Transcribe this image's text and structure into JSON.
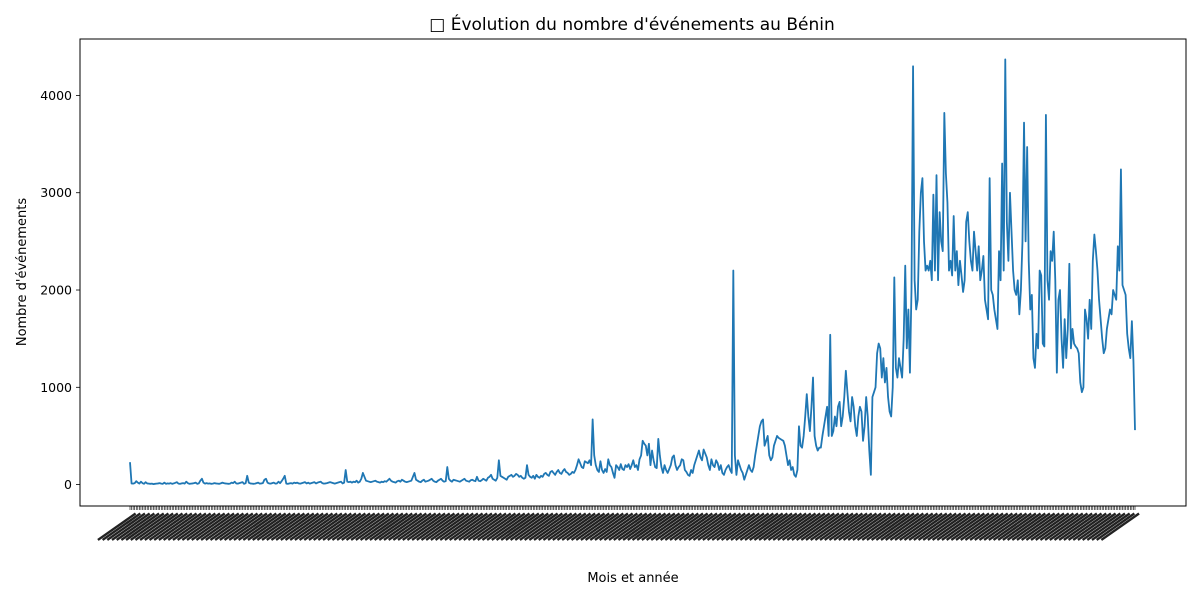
{
  "chart_data": {
    "type": "line",
    "title": "□ Évolution du nombre d'événements au Bénin",
    "xlabel": "Mois et année",
    "ylabel": "Nombre d'événements",
    "ylim": [
      -220,
      4580
    ],
    "yticks": [
      0,
      1000,
      2000,
      3000,
      4000
    ],
    "grid": false,
    "legend": "none",
    "x_tick_labels_note": "",
    "series": [
      {
        "color": "#1f77b4",
        "values": [
          230,
          12,
          10,
          15,
          35,
          20,
          10,
          30,
          15,
          8,
          25,
          12,
          10,
          8,
          10,
          5,
          8,
          10,
          12,
          15,
          10,
          8,
          20,
          8,
          12,
          10,
          15,
          8,
          12,
          18,
          25,
          10,
          8,
          12,
          15,
          10,
          30,
          15,
          8,
          10,
          12,
          15,
          20,
          8,
          12,
          40,
          60,
          20,
          10,
          15,
          10,
          12,
          8,
          10,
          15,
          12,
          10,
          8,
          12,
          20,
          15,
          12,
          10,
          8,
          10,
          20,
          15,
          30,
          12,
          10,
          15,
          20,
          25,
          8,
          15,
          90,
          20,
          12,
          10,
          8,
          10,
          15,
          20,
          10,
          12,
          15,
          50,
          60,
          20,
          12,
          10,
          15,
          20,
          10,
          12,
          30,
          15,
          35,
          60,
          90,
          10,
          8,
          12,
          15,
          10,
          20,
          15,
          20,
          12,
          10,
          15,
          20,
          25,
          12,
          20,
          10,
          15,
          20,
          25,
          12,
          20,
          25,
          30,
          15,
          10,
          12,
          15,
          20,
          25,
          20,
          15,
          10,
          15,
          20,
          25,
          30,
          12,
          20,
          150,
          30,
          25,
          30,
          20,
          30,
          25,
          40,
          20,
          30,
          60,
          120,
          80,
          40,
          35,
          30,
          25,
          30,
          35,
          40,
          30,
          25,
          20,
          30,
          25,
          35,
          30,
          45,
          60,
          40,
          30,
          25,
          20,
          35,
          40,
          30,
          50,
          40,
          30,
          25,
          30,
          35,
          40,
          80,
          120,
          50,
          40,
          30,
          25,
          40,
          50,
          30,
          35,
          40,
          50,
          60,
          40,
          30,
          25,
          40,
          50,
          60,
          40,
          30,
          35,
          180,
          60,
          40,
          30,
          50,
          45,
          40,
          35,
          30,
          40,
          50,
          60,
          40,
          35,
          30,
          45,
          50,
          40,
          35,
          80,
          40,
          35,
          45,
          60,
          50,
          40,
          70,
          80,
          100,
          60,
          50,
          40,
          70,
          250,
          90,
          80,
          70,
          60,
          50,
          80,
          90,
          100,
          80,
          90,
          110,
          100,
          80,
          90,
          70,
          60,
          70,
          200,
          100,
          80,
          70,
          90,
          60,
          100,
          80,
          70,
          90,
          80,
          110,
          120,
          100,
          90,
          130,
          140,
          120,
          100,
          130,
          150,
          120,
          110,
          140,
          160,
          130,
          120,
          100,
          110,
          130,
          120,
          150,
          200,
          260,
          220,
          180,
          170,
          240,
          230,
          220,
          250,
          200,
          670,
          300,
          200,
          150,
          130,
          240,
          150,
          120,
          160,
          130,
          260,
          200,
          180,
          120,
          70,
          200,
          180,
          150,
          210,
          160,
          150,
          200,
          180,
          210,
          160,
          200,
          250,
          180,
          200,
          150,
          260,
          300,
          450,
          420,
          400,
          300,
          420,
          200,
          350,
          250,
          180,
          170,
          470,
          300,
          180,
          120,
          200,
          150,
          120,
          160,
          200,
          280,
          300,
          200,
          150,
          180,
          200,
          260,
          250,
          150,
          130,
          100,
          90,
          150,
          120,
          200,
          250,
          300,
          350,
          280,
          250,
          360,
          320,
          280,
          200,
          150,
          260,
          200,
          180,
          250,
          220,
          150,
          200,
          120,
          100,
          150,
          180,
          200,
          150,
          120,
          2200,
          300,
          100,
          250,
          200,
          150,
          120,
          50,
          100,
          150,
          200,
          150,
          130,
          180,
          300,
          400,
          500,
          600,
          650,
          670,
          400,
          450,
          500,
          300,
          250,
          280,
          400,
          450,
          500,
          480,
          470,
          460,
          450,
          400,
          300,
          200,
          250,
          150,
          180,
          100,
          80,
          150,
          600,
          400,
          380,
          500,
          700,
          930,
          700,
          550,
          800,
          1100,
          500,
          400,
          350,
          380,
          380,
          500,
          600,
          700,
          800,
          500,
          1540,
          500,
          550,
          700,
          600,
          800,
          850,
          600,
          700,
          900,
          1170,
          950,
          750,
          650,
          900,
          800,
          600,
          500,
          700,
          800,
          750,
          450,
          600,
          900,
          700,
          350,
          100,
          900,
          950,
          1000,
          1350,
          1450,
          1400,
          1100,
          1300,
          1050,
          1200,
          900,
          750,
          700,
          1000,
          2130,
          1200,
          1100,
          1300,
          1200,
          1100,
          1500,
          2250,
          1400,
          1800,
          1150,
          2000,
          4300,
          2100,
          1800,
          1900,
          2600,
          3000,
          3150,
          2500,
          2200,
          2250,
          2200,
          2300,
          2100,
          2980,
          2200,
          3180,
          2100,
          2800,
          2500,
          2400,
          3820,
          3200,
          2900,
          2200,
          2300,
          2150,
          2760,
          2200,
          2400,
          2050,
          2300,
          2150,
          1980,
          2100,
          2700,
          2800,
          2500,
          2300,
          2200,
          2600,
          2400,
          2200,
          2450,
          2100,
          2200,
          2350,
          1900,
          1800,
          1700,
          3150,
          2000,
          1950,
          1800,
          1700,
          1600,
          2400,
          2100,
          3300,
          2200,
          4370,
          2700,
          2300,
          3000,
          2600,
          2200,
          2000,
          1950,
          2100,
          1750,
          2000,
          2500,
          3720,
          2500,
          3470,
          2300,
          1800,
          1950,
          1300,
          1200,
          1550,
          1400,
          2200,
          2150,
          1450,
          1420,
          3800,
          2100,
          1900,
          2400,
          2300,
          2600,
          2100,
          1150,
          1900,
          2000,
          1500,
          1200,
          1700,
          1300,
          1600,
          2270,
          1400,
          1600,
          1450,
          1420,
          1400,
          1350,
          1050,
          950,
          1000,
          1800,
          1700,
          1500,
          1900,
          1600,
          2300,
          2570,
          2400,
          2200,
          1900,
          1700,
          1500,
          1350,
          1400,
          1600,
          1700,
          1800,
          1750,
          2000,
          1950,
          1900,
          2450,
          2200,
          3240,
          2050,
          2000,
          1950,
          1550,
          1400,
          1300,
          1680,
          1270,
          560
        ]
      }
    ]
  }
}
